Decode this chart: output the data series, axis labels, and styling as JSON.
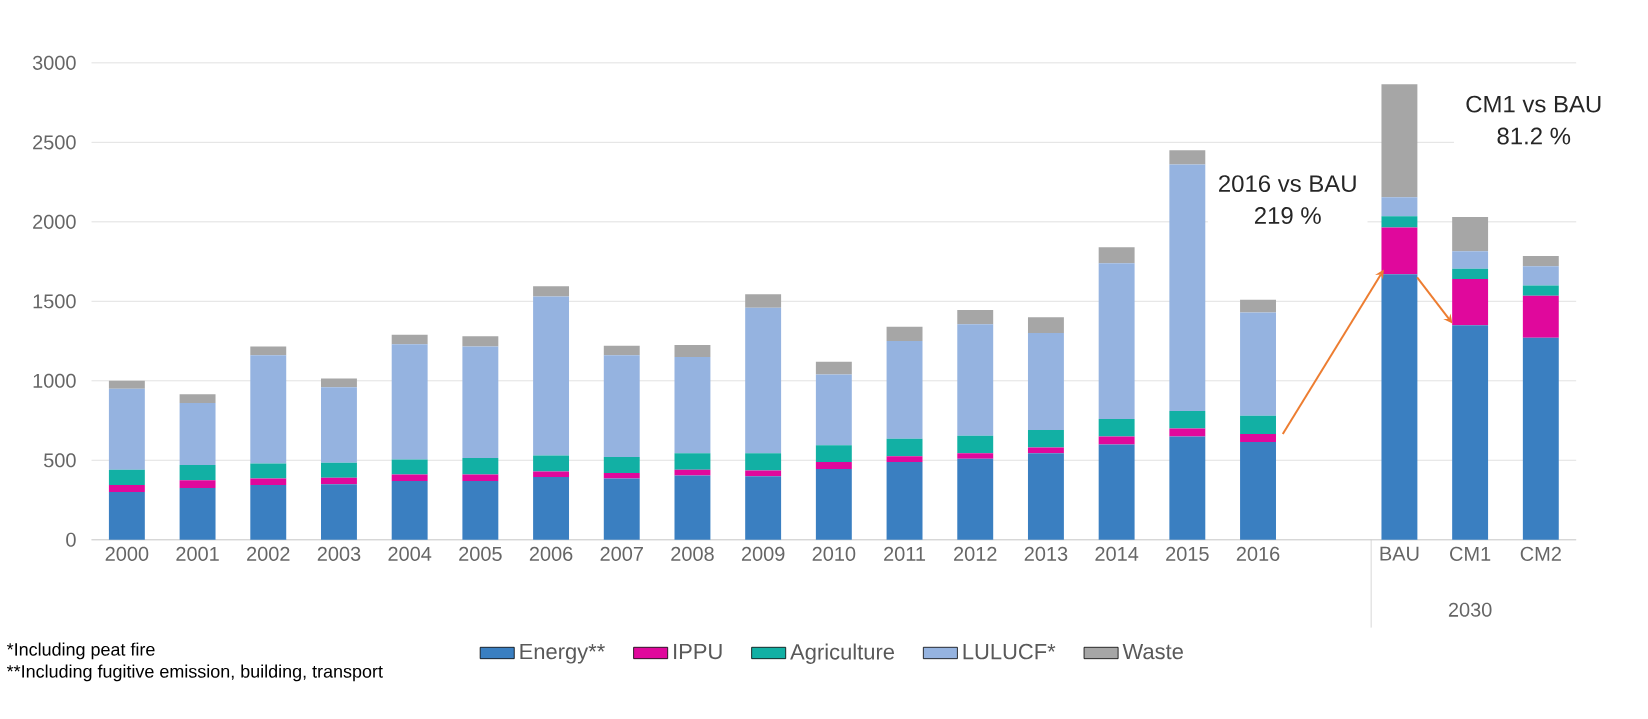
{
  "chart_data": {
    "type": "bar",
    "stacked": true,
    "categories": [
      "2000",
      "2001",
      "2002",
      "2003",
      "2004",
      "2005",
      "2006",
      "2007",
      "2008",
      "2009",
      "2010",
      "2011",
      "2012",
      "2013",
      "2014",
      "2015",
      "2016",
      null,
      "BAU",
      "CM1",
      "CM2"
    ],
    "series": [
      {
        "name": "Energy**",
        "color": "#3a7fc1",
        "values": [
          300,
          325,
          345,
          350,
          370,
          370,
          395,
          385,
          405,
          400,
          445,
          490,
          510,
          545,
          600,
          650,
          615,
          null,
          1670,
          1350,
          1270
        ]
      },
      {
        "name": "IPPU",
        "color": "#e0089c",
        "values": [
          45,
          50,
          40,
          40,
          40,
          40,
          35,
          35,
          35,
          35,
          45,
          35,
          35,
          35,
          50,
          50,
          50,
          null,
          295,
          290,
          265
        ]
      },
      {
        "name": "Agriculture",
        "color": "#12b0a4",
        "values": [
          95,
          95,
          95,
          95,
          95,
          105,
          100,
          100,
          105,
          110,
          105,
          110,
          110,
          110,
          110,
          110,
          115,
          null,
          70,
          65,
          65
        ]
      },
      {
        "name": "LULUCF*",
        "color": "#95b3e0",
        "values": [
          510,
          390,
          680,
          475,
          725,
          700,
          1000,
          640,
          605,
          915,
          445,
          615,
          700,
          610,
          980,
          1550,
          650,
          null,
          120,
          110,
          120
        ]
      },
      {
        "name": "Waste",
        "color": "#a6a6a6",
        "values": [
          50,
          55,
          55,
          55,
          60,
          65,
          65,
          60,
          75,
          85,
          80,
          90,
          90,
          100,
          100,
          90,
          80,
          null,
          710,
          215,
          65
        ]
      }
    ],
    "ylim": [
      0,
      3000
    ],
    "yticks": [
      0,
      500,
      1000,
      1500,
      2000,
      2500,
      3000
    ],
    "grid": "y",
    "legend": "bottom",
    "annotations": [
      "2016 vs BAU",
      "219 %",
      "CM1 vs BAU",
      "81.2 %",
      "2030",
      "*Including peat fire",
      "**Including fugitive emission, building, transport"
    ]
  }
}
